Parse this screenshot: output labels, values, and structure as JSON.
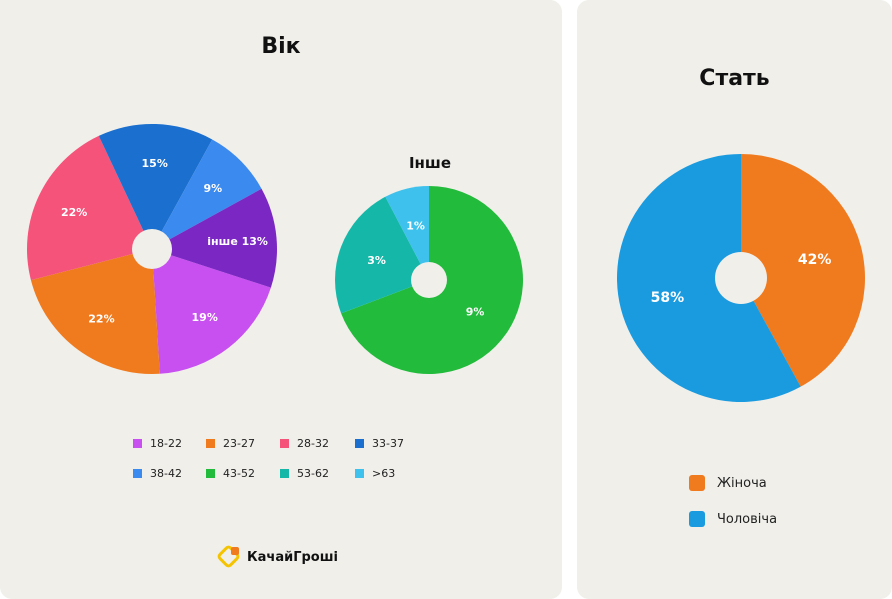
{
  "chart_data": [
    {
      "type": "pie",
      "title": "Вік",
      "slices": [
        {
          "name": "18-22",
          "value": 19,
          "label": "19%",
          "color": "#c84ff0"
        },
        {
          "name": "23-27",
          "value": 22,
          "label": "22%",
          "color": "#f07a1e"
        },
        {
          "name": "28-32",
          "value": 22,
          "label": "22%",
          "color": "#f5537a"
        },
        {
          "name": "33-37",
          "value": 15,
          "label": "15%",
          "color": "#1a6fcf"
        },
        {
          "name": "38-42",
          "value": 9,
          "label": "9%",
          "color": "#3a8af0"
        },
        {
          "name": "інше",
          "value": 13,
          "label": "інше 13%",
          "color": "#7b27c4"
        }
      ]
    },
    {
      "type": "pie",
      "title": "Інше",
      "slices": [
        {
          "name": "43-52",
          "value": 9,
          "label": "9%",
          "color": "#22bb3c"
        },
        {
          "name": "53-62",
          "value": 3,
          "label": "3%",
          "color": "#15b8a8"
        },
        {
          "name": ">63",
          "value": 1,
          "label": "1%",
          "color": "#3ec1ec"
        }
      ]
    },
    {
      "type": "pie",
      "title": "Стать",
      "slices": [
        {
          "name": "Жіноча",
          "value": 42,
          "label": "42%",
          "color": "#f07a1e"
        },
        {
          "name": "Чоловіча",
          "value": 58,
          "label": "58%",
          "color": "#1a9be0"
        }
      ]
    }
  ],
  "age_legend": [
    {
      "label": "18-22",
      "color": "#c84ff0"
    },
    {
      "label": "23-27",
      "color": "#f07a1e"
    },
    {
      "label": "28-32",
      "color": "#f5537a"
    },
    {
      "label": "33-37",
      "color": "#1a6fcf"
    },
    {
      "label": "38-42",
      "color": "#3a8af0"
    },
    {
      "label": "43-52",
      "color": "#22bb3c"
    },
    {
      "label": "53-62",
      "color": "#15b8a8"
    },
    {
      "label": ">63",
      "color": "#3ec1ec"
    }
  ],
  "gender_legend": [
    {
      "label": "Жіноча",
      "color": "#f07a1e"
    },
    {
      "label": "Чоловіча",
      "color": "#1a9be0"
    }
  ],
  "logo": {
    "text": "КачайГроші",
    "icon": "logo-icon"
  },
  "background_color": "#f0efea"
}
